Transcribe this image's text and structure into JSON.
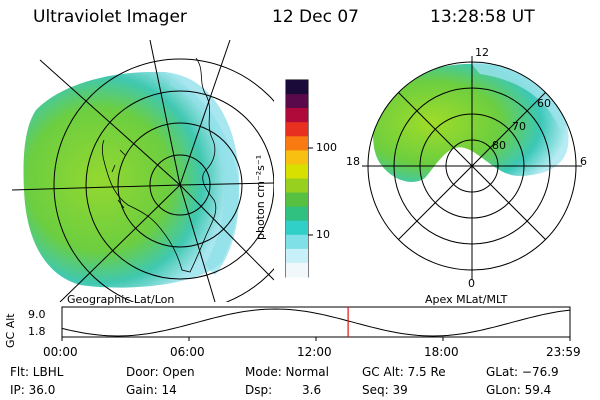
{
  "header": {
    "title": "Ultraviolet Imager",
    "date": "12 Dec 07",
    "time": "13:28:58 UT"
  },
  "left_panel": {
    "label": "Geographic Lat/Lon"
  },
  "right_panel": {
    "label": "Apex MLat/MLT",
    "mlt_labels": [
      "12",
      "18",
      "6",
      "0"
    ],
    "lat_labels": [
      "60",
      "70",
      "80"
    ]
  },
  "colorbar": {
    "unit_label": "photon cm⁻²s⁻¹",
    "ticks": [
      "100",
      "10"
    ],
    "colors": [
      "#1a0a3a",
      "#5a0a4a",
      "#b00a3a",
      "#e83020",
      "#f87a10",
      "#f8c010",
      "#d8e000",
      "#98d020",
      "#58c040",
      "#30c080",
      "#30d0c8",
      "#80e0e8",
      "#c8f0f8",
      "#f0f8fc"
    ]
  },
  "altitude_plot": {
    "ylabel": "GC Alt",
    "y_ticks": [
      "9.0",
      "1.8"
    ],
    "x_ticks": [
      "00:00",
      "06:00",
      "12:00",
      "18:00",
      "23:59"
    ],
    "current_time_fraction": 0.5632
  },
  "info": {
    "flt": "Flt: LBHL",
    "ip": "IP: 36.0",
    "door": "Door: Open",
    "gain": "Gain: 14",
    "mode": "Mode: Normal",
    "dsp_label": "Dsp:",
    "dsp_value": "3.6",
    "gc_alt": "GC Alt: 7.5 Re",
    "seq": "Seq: 39",
    "glat": "GLat: −76.9",
    "glon": "GLon:  59.4"
  },
  "colors": {
    "aurora_main": "#7ed43a",
    "aurora_edge": "#56d0c8",
    "aurora_faint": "#c8eef4",
    "marker": "#e01010"
  }
}
